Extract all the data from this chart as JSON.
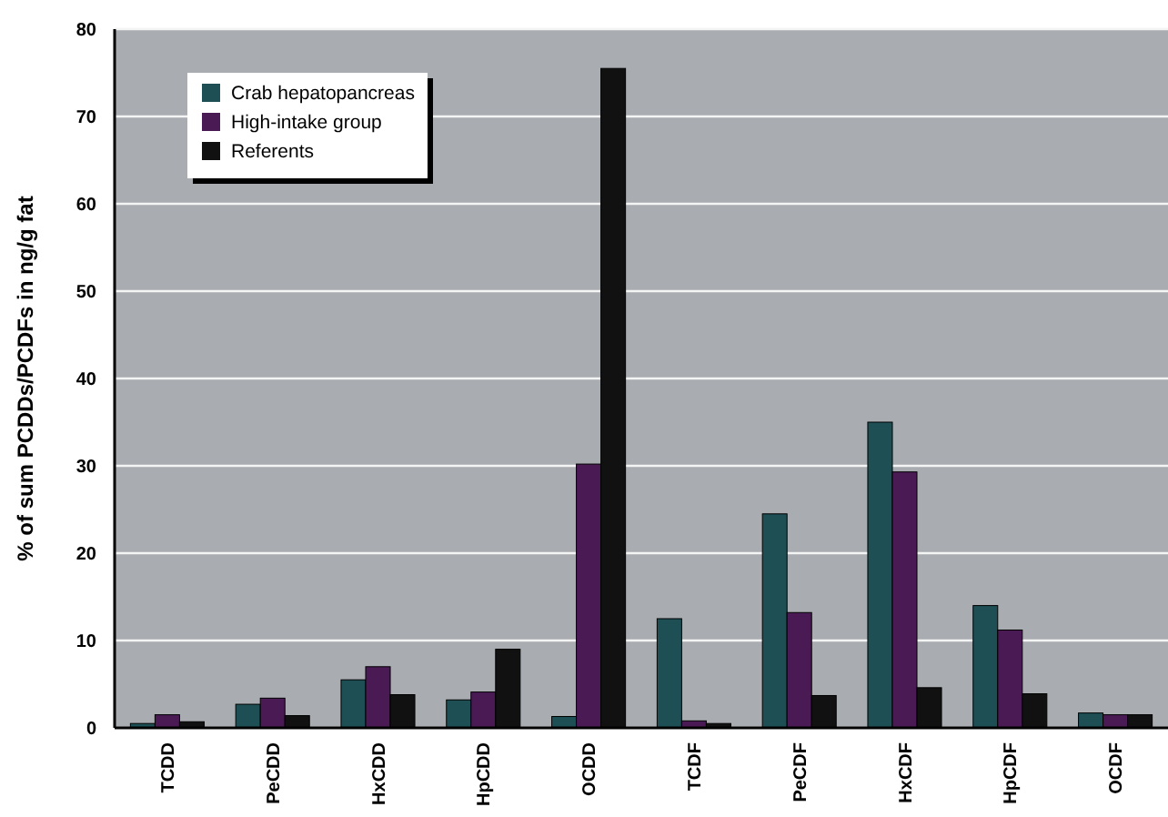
{
  "chart_data": {
    "type": "bar",
    "ylabel": "% of sum PCDDs/PCDFs in ng/g fat",
    "categories": [
      "TCDD",
      "PeCDD",
      "HxCDD",
      "HpCDD",
      "OCDD",
      "TCDF",
      "PeCDF",
      "HxCDF",
      "HpCDF",
      "OCDF"
    ],
    "series": [
      {
        "name": "Crab hepatopancreas",
        "color": "#1d4f55",
        "values": [
          0.5,
          2.7,
          5.5,
          3.2,
          1.3,
          12.5,
          24.5,
          35,
          14,
          1.7
        ]
      },
      {
        "name": "High-intake group",
        "color": "#4a1a55",
        "values": [
          1.5,
          3.4,
          7,
          4.1,
          30.2,
          0.8,
          13.2,
          29.3,
          11.2,
          1.5
        ]
      },
      {
        "name": "Referents",
        "color": "#111111",
        "values": [
          0.7,
          1.4,
          3.8,
          9,
          75.5,
          0.5,
          3.7,
          4.6,
          3.9,
          1.5
        ]
      }
    ],
    "ylim": [
      0,
      80
    ],
    "yticks": [
      0,
      10,
      20,
      30,
      40,
      50,
      60,
      70,
      80
    ],
    "grid": "y",
    "legend": "top left"
  }
}
